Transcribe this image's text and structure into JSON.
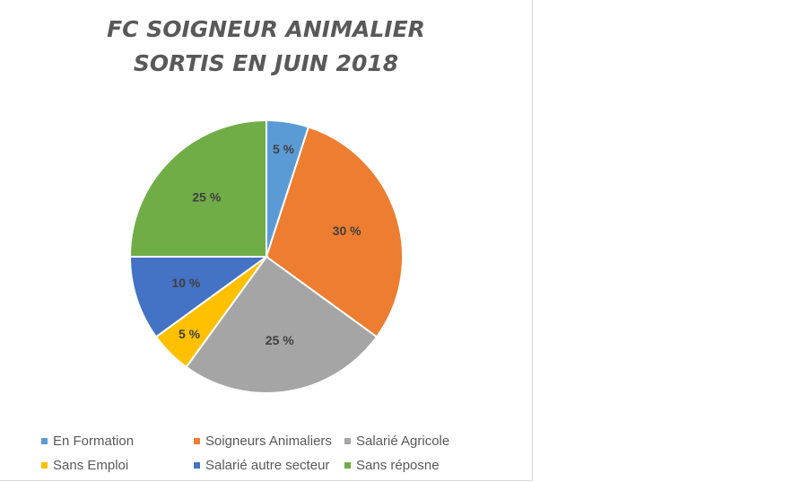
{
  "chart_data": {
    "type": "pie",
    "title": [
      "FC SOIGNEUR ANIMALIER",
      "SORTIS EN JUIN 2018"
    ],
    "categories": [
      "En Formation",
      "Soigneurs Animaliers",
      "Salarié Agricole",
      "Sans Emploi",
      "Salarié autre secteur",
      "Sans réposne"
    ],
    "values": [
      5,
      30,
      25,
      5,
      10,
      25
    ],
    "labels": [
      "5 %",
      "30 %",
      "25 %",
      "5 %",
      "10 %",
      "25 %"
    ],
    "colors": [
      "#5b9bd5",
      "#ed7d31",
      "#a5a5a5",
      "#ffc000",
      "#4472c4",
      "#70ad47"
    ],
    "legend_position": "bottom"
  }
}
